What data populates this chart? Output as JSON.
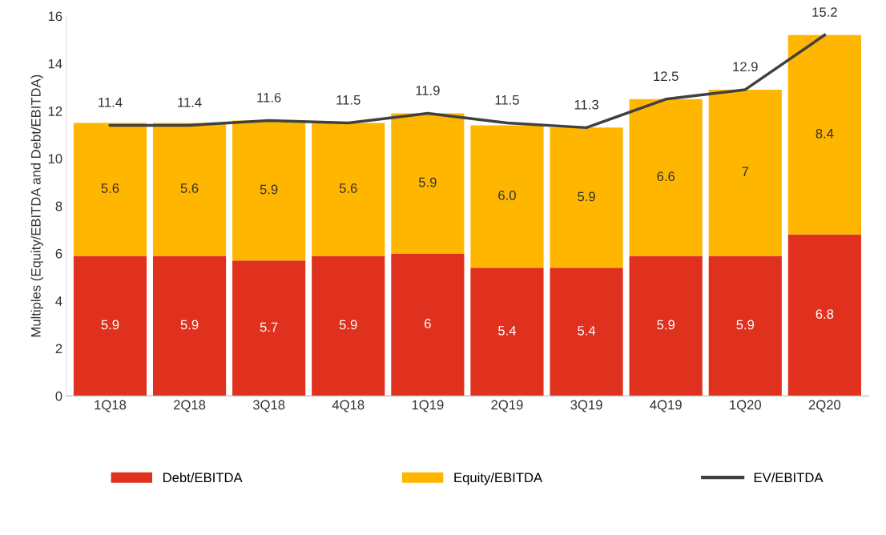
{
  "chart_data": {
    "type": "bar",
    "stacked": true,
    "ylabel": "Multiples (Equity/EBITDA and Debt/EBITDA)",
    "categories": [
      "1Q18",
      "2Q18",
      "3Q18",
      "4Q18",
      "1Q19",
      "2Q19",
      "3Q19",
      "4Q19",
      "1Q20",
      "2Q20"
    ],
    "series": [
      {
        "name": "Debt/EBITDA",
        "color": "#e0301e",
        "values": [
          5.9,
          5.9,
          5.7,
          5.9,
          6,
          5.4,
          5.4,
          5.9,
          5.9,
          6.8
        ],
        "value_labels": [
          "5.9",
          "5.9",
          "5.7",
          "5.9",
          "6",
          "5.4",
          "5.4",
          "5.9",
          "5.9",
          "6.8"
        ]
      },
      {
        "name": "Equity/EBITDA",
        "color": "#ffb600",
        "values": [
          5.6,
          5.6,
          5.9,
          5.6,
          5.9,
          6.0,
          5.9,
          6.6,
          7,
          8.4
        ],
        "value_labels": [
          "5.6",
          "5.6",
          "5.9",
          "5.6",
          "5.9",
          "6.0",
          "5.9",
          "6.6",
          "7",
          "8.4"
        ]
      },
      {
        "name": "EV/EBITDA",
        "type": "line",
        "color": "#404041",
        "values": [
          11.4,
          11.4,
          11.6,
          11.5,
          11.9,
          11.5,
          11.3,
          12.5,
          12.9,
          15.2
        ],
        "value_labels": [
          "11.4",
          "11.4",
          "11.6",
          "11.5",
          "11.9",
          "11.5",
          "11.3",
          "12.5",
          "12.9",
          "15.2"
        ]
      }
    ],
    "ylim": [
      0,
      16
    ],
    "yticks": [
      0,
      2,
      4,
      6,
      8,
      10,
      12,
      14,
      16
    ],
    "grid": false,
    "legend": "bottom",
    "marker": "none",
    "line_style": "solid"
  }
}
